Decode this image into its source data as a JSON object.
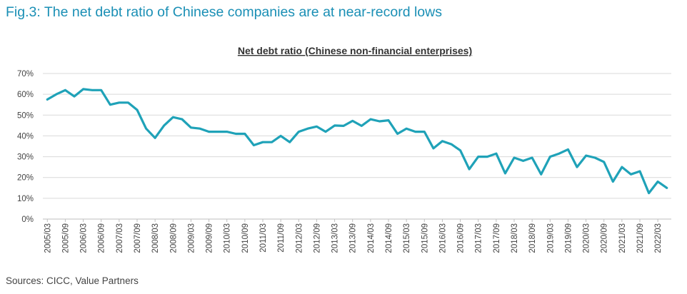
{
  "figure": {
    "title": "Fig.3: The net debt ratio of Chinese companies are at near-record lows",
    "source": "Sources: CICC, Value Partners"
  },
  "chart_data": {
    "type": "line",
    "title": "Net debt ratio (Chinese non-financial enterprises)",
    "xlabel": "",
    "ylabel": "",
    "ylim": [
      0,
      70
    ],
    "yticks": [
      "0%",
      "10%",
      "20%",
      "30%",
      "40%",
      "50%",
      "60%",
      "70%"
    ],
    "grid": true,
    "legend": "none",
    "color": "#1fa2b8",
    "x_tick_labels": [
      "2005/03",
      "2005/09",
      "2006/03",
      "2006/09",
      "2007/03",
      "2007/09",
      "2008/03",
      "2008/09",
      "2009/03",
      "2009/09",
      "2010/03",
      "2010/09",
      "2011/03",
      "2011/09",
      "2012/03",
      "2012/09",
      "2013/03",
      "2013/09",
      "2014/03",
      "2014/09",
      "2015/03",
      "2015/09",
      "2016/03",
      "2016/09",
      "2017/03",
      "2017/09",
      "2018/03",
      "2018/09",
      "2019/03",
      "2019/09",
      "2020/03",
      "2020/09",
      "2021/03",
      "2021/09",
      "2022/03"
    ],
    "series": [
      {
        "name": "",
        "x": [
          "2005/03",
          "2005/06",
          "2005/09",
          "2005/12",
          "2006/03",
          "2006/06",
          "2006/09",
          "2006/12",
          "2007/03",
          "2007/06",
          "2007/09",
          "2007/12",
          "2008/03",
          "2008/06",
          "2008/09",
          "2008/12",
          "2009/03",
          "2009/06",
          "2009/09",
          "2009/12",
          "2010/03",
          "2010/06",
          "2010/09",
          "2010/12",
          "2011/03",
          "2011/06",
          "2011/09",
          "2011/12",
          "2012/03",
          "2012/06",
          "2012/09",
          "2012/12",
          "2013/03",
          "2013/06",
          "2013/09",
          "2013/12",
          "2014/03",
          "2014/06",
          "2014/09",
          "2014/12",
          "2015/03",
          "2015/06",
          "2015/09",
          "2015/12",
          "2016/03",
          "2016/06",
          "2016/09",
          "2016/12",
          "2017/03",
          "2017/06",
          "2017/09",
          "2017/12",
          "2018/03",
          "2018/06",
          "2018/09",
          "2018/12",
          "2019/03",
          "2019/06",
          "2019/09",
          "2019/12",
          "2020/03",
          "2020/06",
          "2020/09",
          "2020/12",
          "2021/03",
          "2021/06",
          "2021/09",
          "2021/12",
          "2022/03",
          "2022/06"
        ],
        "values": [
          57.5,
          60,
          62,
          59,
          62.5,
          62,
          62,
          55,
          56,
          56,
          52.5,
          43.5,
          39,
          45,
          49,
          48,
          44,
          43.5,
          42,
          42,
          42,
          41,
          41,
          35.5,
          37,
          37,
          40,
          37,
          42,
          43.5,
          44.5,
          42,
          45,
          44.8,
          47.2,
          44.8,
          48,
          47,
          47.5,
          41,
          43.5,
          42,
          42,
          34,
          37.5,
          36,
          33,
          24,
          30,
          30,
          31.5,
          22,
          29.5,
          28,
          29.5,
          21.5,
          30,
          31.5,
          33.5,
          25,
          30.5,
          29.5,
          27.5,
          18,
          25,
          21.5,
          23,
          12.5,
          18,
          15
        ]
      }
    ]
  }
}
